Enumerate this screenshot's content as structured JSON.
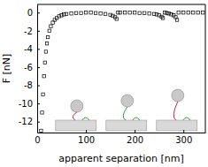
{
  "chart_data": {
    "type": "scatter",
    "x_label": "apparent separation [nm]",
    "y_label": "F [nN]",
    "x": [
      8,
      10,
      12,
      14,
      16,
      18,
      20,
      22,
      25,
      28,
      32,
      36,
      40,
      45,
      50,
      55,
      60,
      70,
      80,
      90,
      100,
      110,
      120,
      130,
      140,
      150,
      155,
      160,
      163,
      166,
      170,
      180,
      190,
      200,
      210,
      220,
      230,
      240,
      245,
      250,
      255,
      258,
      262,
      266,
      270,
      275,
      280,
      284,
      287,
      290,
      300,
      310,
      320,
      330,
      340
    ],
    "y": [
      -13,
      -11,
      -9,
      -7,
      -5.5,
      -4.3,
      -3.4,
      -2.7,
      -2.0,
      -1.5,
      -1.1,
      -0.8,
      -0.6,
      -0.4,
      -0.3,
      -0.2,
      -0.15,
      -0.1,
      -0.05,
      -0.05,
      0,
      0,
      -0.05,
      -0.1,
      -0.15,
      -0.25,
      -0.35,
      -0.5,
      -0.7,
      0,
      0,
      0,
      0,
      0,
      -0.05,
      -0.05,
      -0.1,
      -0.15,
      -0.2,
      -0.3,
      -0.45,
      -0.6,
      0,
      -0.05,
      -0.1,
      -0.2,
      -0.3,
      -0.5,
      -0.8,
      0,
      0,
      0,
      0,
      0,
      0
    ],
    "color": "#000000",
    "marker": "square",
    "xlim": [
      0,
      345
    ],
    "ylim": [
      -13.2,
      0.9
    ],
    "xticks": [
      0,
      100,
      200,
      300
    ],
    "yticks": [
      0,
      -2,
      -4,
      -6,
      -8,
      -10,
      -12
    ]
  }
}
